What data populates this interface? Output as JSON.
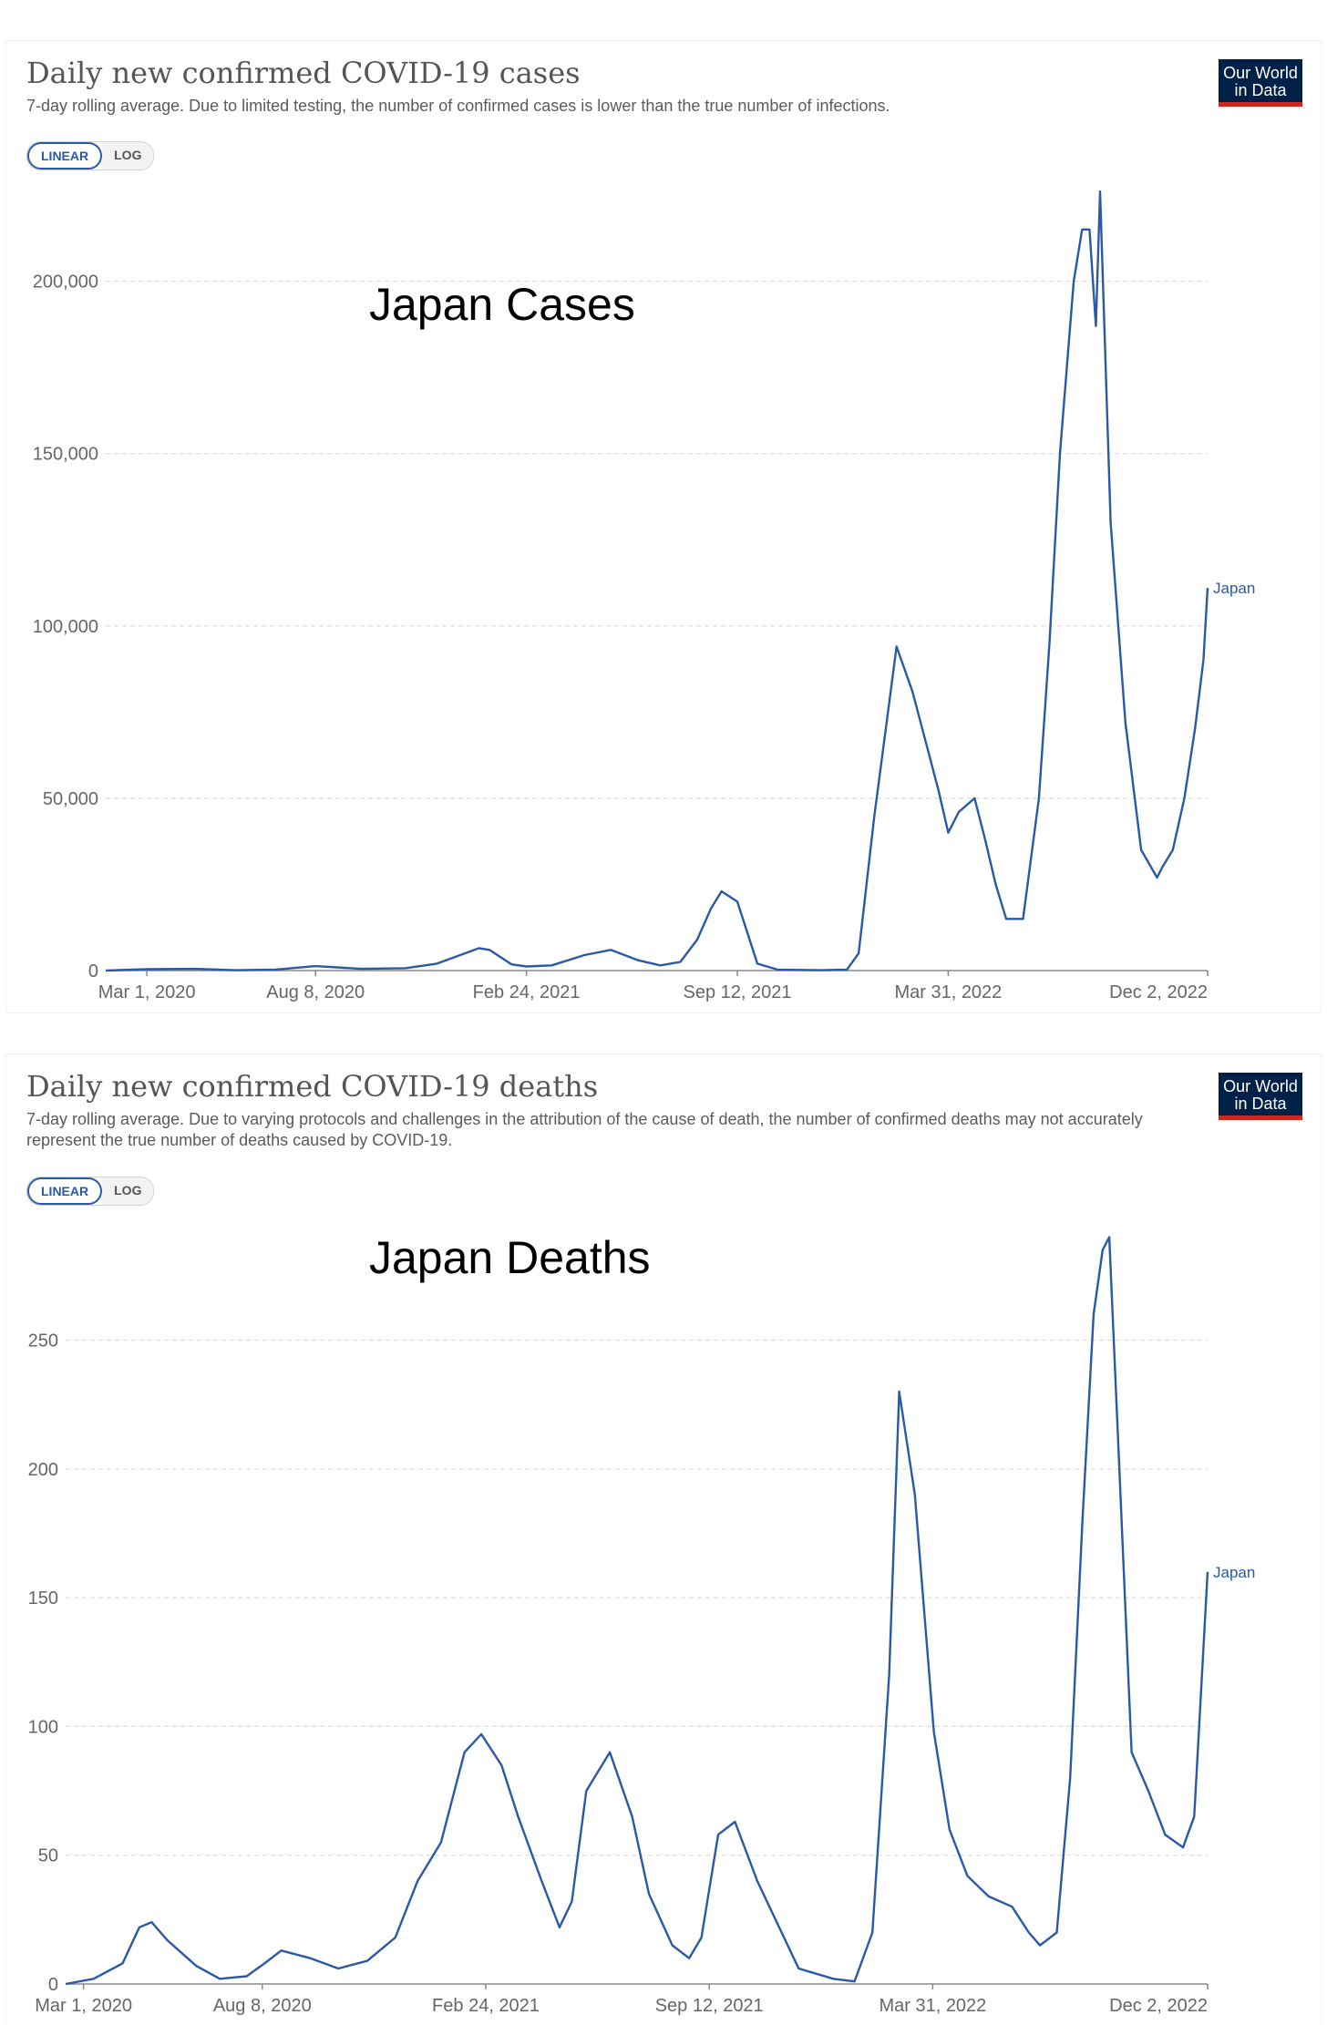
{
  "panels": [
    {
      "title": "Daily new confirmed COVID-19 cases",
      "subtitle": "7-day rolling average. Due to limited testing, the number of confirmed cases is lower than the true number of infections.",
      "logo_line1": "Our World",
      "logo_line2": "in Data",
      "toggle_linear": "LINEAR",
      "toggle_log": "LOG",
      "overlay_label": "Japan Cases"
    },
    {
      "title": "Daily new confirmed COVID-19 deaths",
      "subtitle": "7-day rolling average. Due to varying protocols and challenges in the attribution of the cause of death, the number of confirmed deaths may not accurately represent the true number of deaths caused by COVID-19.",
      "logo_line1": "Our World",
      "logo_line2": "in Data",
      "toggle_linear": "LINEAR",
      "toggle_log": "LOG",
      "overlay_label": "Japan Deaths"
    }
  ],
  "colors": {
    "line": "#2a59a5",
    "grid": "#dddddd",
    "axis": "#888888",
    "tick_text": "#666666"
  },
  "chart_data": [
    {
      "type": "line",
      "title": "Daily new confirmed COVID-19 cases",
      "xlabel": "",
      "ylabel": "",
      "x_is_date": true,
      "xlim": [
        "2020-01-22",
        "2022-12-02"
      ],
      "ylim": [
        0,
        225000
      ],
      "yticks": [
        0,
        50000,
        100000,
        150000,
        200000
      ],
      "ytick_labels": [
        "0",
        "50,000",
        "100,000",
        "150,000",
        "200,000"
      ],
      "xticks": [
        "2020-03-01",
        "2020-08-08",
        "2021-02-24",
        "2021-09-12",
        "2022-03-31",
        "2022-12-02"
      ],
      "xtick_labels": [
        "Mar 1, 2020",
        "Aug 8, 2020",
        "Feb 24, 2021",
        "Sep 12, 2021",
        "Mar 31, 2022",
        "Dec 2, 2022"
      ],
      "grid": true,
      "series": [
        {
          "name": "Japan",
          "x": [
            "2020-01-22",
            "2020-03-01",
            "2020-04-15",
            "2020-05-25",
            "2020-07-01",
            "2020-08-08",
            "2020-09-20",
            "2020-11-01",
            "2020-12-01",
            "2021-01-10",
            "2021-01-20",
            "2021-02-10",
            "2021-02-24",
            "2021-03-20",
            "2021-04-20",
            "2021-05-15",
            "2021-06-10",
            "2021-07-01",
            "2021-07-20",
            "2021-08-05",
            "2021-08-18",
            "2021-08-28",
            "2021-09-12",
            "2021-10-01",
            "2021-10-20",
            "2021-12-01",
            "2021-12-25",
            "2022-01-05",
            "2022-01-20",
            "2022-02-04",
            "2022-02-10",
            "2022-02-25",
            "2022-03-10",
            "2022-03-22",
            "2022-03-31",
            "2022-04-10",
            "2022-04-25",
            "2022-05-05",
            "2022-05-15",
            "2022-05-25",
            "2022-06-10",
            "2022-06-25",
            "2022-07-05",
            "2022-07-15",
            "2022-07-28",
            "2022-08-05",
            "2022-08-12",
            "2022-08-18",
            "2022-08-22",
            "2022-09-01",
            "2022-09-15",
            "2022-09-30",
            "2022-10-15",
            "2022-10-20",
            "2022-10-30",
            "2022-11-10",
            "2022-11-20",
            "2022-11-28",
            "2022-12-02"
          ],
          "values": [
            0,
            400,
            500,
            100,
            300,
            1300,
            500,
            700,
            2000,
            6500,
            6000,
            1800,
            1200,
            1500,
            4500,
            6000,
            3000,
            1500,
            2500,
            9000,
            18000,
            23000,
            20000,
            2000,
            300,
            100,
            300,
            5000,
            45000,
            80000,
            94000,
            81000,
            66000,
            52000,
            40000,
            46000,
            50000,
            38000,
            25000,
            15000,
            15000,
            50000,
            95000,
            150000,
            200000,
            215000,
            215000,
            187000,
            226000,
            130000,
            72000,
            35000,
            27000,
            30000,
            35000,
            50000,
            70000,
            90000,
            111000
          ]
        }
      ]
    },
    {
      "type": "line",
      "title": "Daily new confirmed COVID-19 deaths",
      "xlabel": "",
      "ylabel": "",
      "x_is_date": true,
      "xlim": [
        "2020-02-14",
        "2022-12-02"
      ],
      "ylim": [
        0,
        293
      ],
      "yticks": [
        0,
        50,
        100,
        150,
        200,
        250
      ],
      "ytick_labels": [
        "0",
        "50",
        "100",
        "150",
        "200",
        "250"
      ],
      "xticks": [
        "2020-03-01",
        "2020-08-08",
        "2021-02-24",
        "2021-09-12",
        "2022-03-31",
        "2022-12-02"
      ],
      "xtick_labels": [
        "Mar 1, 2020",
        "Aug 8, 2020",
        "Feb 24, 2021",
        "Sep 12, 2021",
        "Mar 31, 2022",
        "Dec 2, 2022"
      ],
      "grid": true,
      "series": [
        {
          "name": "Japan",
          "x": [
            "2020-02-14",
            "2020-03-10",
            "2020-04-05",
            "2020-04-20",
            "2020-05-01",
            "2020-05-15",
            "2020-06-10",
            "2020-07-01",
            "2020-07-25",
            "2020-08-10",
            "2020-08-25",
            "2020-09-20",
            "2020-10-15",
            "2020-11-10",
            "2020-12-05",
            "2020-12-25",
            "2021-01-15",
            "2021-01-30",
            "2021-02-05",
            "2021-02-20",
            "2021-03-10",
            "2021-03-25",
            "2021-04-15",
            "2021-05-01",
            "2021-05-12",
            "2021-05-25",
            "2021-06-15",
            "2021-07-05",
            "2021-07-20",
            "2021-08-10",
            "2021-08-25",
            "2021-09-05",
            "2021-09-20",
            "2021-10-05",
            "2021-10-25",
            "2021-12-01",
            "2022-01-01",
            "2022-01-20",
            "2022-02-05",
            "2022-02-20",
            "2022-03-01",
            "2022-03-15",
            "2022-04-01",
            "2022-04-15",
            "2022-05-01",
            "2022-05-20",
            "2022-06-10",
            "2022-06-25",
            "2022-07-05",
            "2022-07-20",
            "2022-08-01",
            "2022-08-12",
            "2022-08-22",
            "2022-08-30",
            "2022-09-05",
            "2022-09-15",
            "2022-09-25",
            "2022-10-10",
            "2022-10-25",
            "2022-11-10",
            "2022-11-20",
            "2022-12-02"
          ],
          "values": [
            0,
            2,
            8,
            22,
            24,
            17,
            7,
            2,
            3,
            8,
            13,
            10,
            6,
            9,
            18,
            40,
            55,
            80,
            90,
            97,
            85,
            65,
            40,
            22,
            32,
            75,
            90,
            65,
            35,
            15,
            10,
            18,
            58,
            63,
            40,
            6,
            2,
            1,
            20,
            120,
            230,
            190,
            98,
            60,
            42,
            34,
            30,
            20,
            15,
            20,
            80,
            180,
            260,
            285,
            290,
            190,
            90,
            75,
            58,
            53,
            65,
            160
          ]
        }
      ]
    }
  ]
}
